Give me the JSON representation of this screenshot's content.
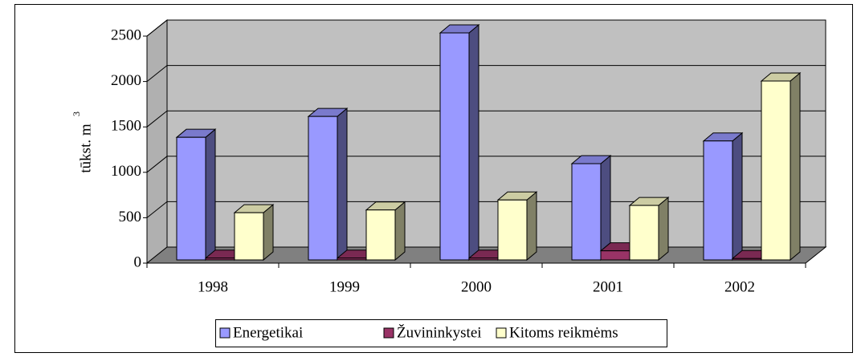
{
  "chart_data": {
    "type": "bar3d",
    "y_label": "tūkst. m",
    "y_label_superscript": "3",
    "categories": [
      "1998",
      "1999",
      "2000",
      "2001",
      "2002"
    ],
    "series": [
      {
        "name": "Energetikai",
        "color": "#9999ff",
        "values": [
          1350,
          1580,
          2500,
          1060,
          1310
        ]
      },
      {
        "name": "Žuvininkystei",
        "color": "#993366",
        "values": [
          20,
          20,
          20,
          100,
          15
        ]
      },
      {
        "name": "Kitoms reikmėms",
        "color": "#ffffcc",
        "values": [
          520,
          550,
          660,
          600,
          1970
        ]
      }
    ],
    "ylim": [
      0,
      2500
    ],
    "yticks": [
      0,
      500,
      1000,
      1500,
      2000,
      2500
    ],
    "grid": true,
    "legend": "bottom"
  }
}
